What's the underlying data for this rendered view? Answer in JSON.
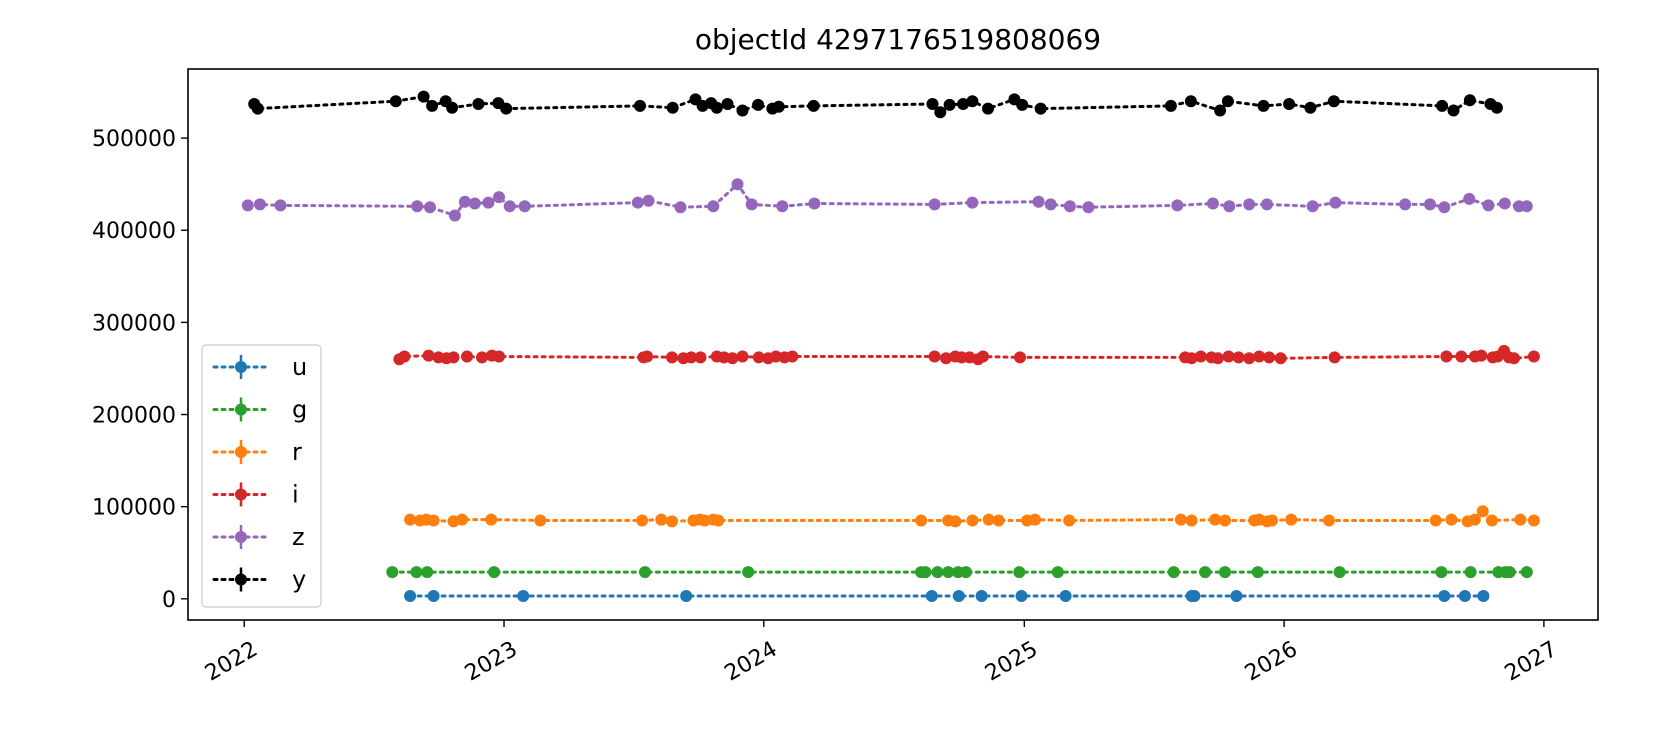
{
  "chart_data": {
    "type": "scatter",
    "title": "objectId 4297176519808069",
    "xlabel": "",
    "ylabel": "",
    "x_axis": {
      "kind": "date",
      "range": [
        "2021-10-14",
        "2027-03-18"
      ],
      "ticks": [
        "2022",
        "2023",
        "2024",
        "2025",
        "2026",
        "2027"
      ]
    },
    "y_axis": {
      "range": [
        -23000,
        575000
      ],
      "ticks": [
        0,
        100000,
        200000,
        300000,
        400000,
        500000
      ],
      "tick_labels": [
        "0",
        "100000",
        "200000",
        "300000",
        "400000",
        "500000"
      ]
    },
    "grid": false,
    "legend": {
      "placement": "lower-left",
      "entries": [
        "u",
        "g",
        "r",
        "i",
        "z",
        "y"
      ]
    },
    "series": [
      {
        "name": "u",
        "color": "#1f77b4",
        "x": [
          "2022-08-22",
          "2022-09-24",
          "2023-01-28",
          "2023-09-14",
          "2024-08-24",
          "2024-10-01",
          "2024-11-02",
          "2024-12-28",
          "2025-02-28",
          "2025-08-24",
          "2025-08-28",
          "2025-10-26",
          "2026-08-14",
          "2026-09-12",
          "2026-10-08"
        ],
        "y": [
          3000,
          3000,
          3000,
          3000,
          3000,
          3000,
          3000,
          3000,
          3000,
          3000,
          3000,
          3000,
          3000,
          3000,
          3000
        ]
      },
      {
        "name": "g",
        "color": "#2ca02c",
        "x": [
          "2022-07-28",
          "2022-08-31",
          "2022-09-15",
          "2022-12-18",
          "2023-07-18",
          "2023-12-10",
          "2024-08-09",
          "2024-08-15",
          "2024-09-01",
          "2024-09-16",
          "2024-09-30",
          "2024-10-11",
          "2024-12-25",
          "2025-02-17",
          "2025-07-30",
          "2025-09-12",
          "2025-10-10",
          "2025-11-25",
          "2026-03-20",
          "2026-08-10",
          "2026-09-20",
          "2026-10-29",
          "2026-11-08",
          "2026-11-14",
          "2026-12-08"
        ],
        "y": [
          29000,
          29000,
          29000,
          29000,
          29000,
          29000,
          29000,
          29000,
          29000,
          29000,
          29000,
          29000,
          29000,
          29000,
          29000,
          29000,
          29000,
          29000,
          29000,
          29000,
          29000,
          29000,
          29000,
          29000,
          29000
        ]
      },
      {
        "name": "r",
        "color": "#ff7f0e",
        "x": [
          "2022-08-22",
          "2022-09-05",
          "2022-09-14",
          "2022-09-24",
          "2022-10-22",
          "2022-11-03",
          "2022-12-14",
          "2023-02-21",
          "2023-07-14",
          "2023-08-10",
          "2023-08-25",
          "2023-09-24",
          "2023-10-03",
          "2023-10-10",
          "2023-10-22",
          "2023-10-29",
          "2024-08-09",
          "2024-09-16",
          "2024-09-26",
          "2024-10-20",
          "2024-11-12",
          "2024-11-26",
          "2025-01-05",
          "2025-01-16",
          "2025-03-05",
          "2025-08-09",
          "2025-08-24",
          "2025-09-26",
          "2025-10-10",
          "2025-11-20",
          "2025-11-27",
          "2025-12-08",
          "2025-12-15",
          "2026-01-11",
          "2026-03-05",
          "2026-08-02",
          "2026-08-24",
          "2026-09-16",
          "2026-09-26",
          "2026-10-07",
          "2026-10-20",
          "2026-11-29",
          "2026-12-18"
        ],
        "y": [
          86000,
          85000,
          86000,
          85000,
          84000,
          86000,
          86000,
          85000,
          85000,
          86000,
          84000,
          85000,
          86000,
          85000,
          86000,
          85000,
          85000,
          85000,
          84000,
          85000,
          86000,
          85000,
          85000,
          86000,
          85000,
          86000,
          85000,
          86000,
          85000,
          85000,
          86000,
          84000,
          85000,
          86000,
          85000,
          85000,
          86000,
          84000,
          86000,
          95000,
          85000,
          86000,
          85000
        ]
      },
      {
        "name": "i",
        "color": "#d62728",
        "x": [
          "2022-08-07",
          "2022-08-14",
          "2022-09-17",
          "2022-10-01",
          "2022-10-12",
          "2022-10-22",
          "2022-11-10",
          "2022-12-01",
          "2022-12-15",
          "2022-12-25",
          "2023-07-16",
          "2023-07-21",
          "2023-08-25",
          "2023-09-10",
          "2023-09-21",
          "2023-10-04",
          "2023-10-27",
          "2023-11-06",
          "2023-11-18",
          "2023-12-02",
          "2023-12-25",
          "2024-01-07",
          "2024-01-18",
          "2024-01-30",
          "2024-02-10",
          "2024-08-28",
          "2024-09-13",
          "2024-09-26",
          "2024-10-05",
          "2024-10-16",
          "2024-10-28",
          "2024-11-04",
          "2024-12-26",
          "2025-08-15",
          "2025-08-24",
          "2025-09-06",
          "2025-09-21",
          "2025-09-30",
          "2025-10-15",
          "2025-10-29",
          "2025-11-13",
          "2025-11-27",
          "2025-12-11",
          "2025-12-27",
          "2026-03-13",
          "2026-08-17",
          "2026-09-07",
          "2026-09-26",
          "2026-10-05",
          "2026-10-21",
          "2026-10-28",
          "2026-11-06",
          "2026-11-13",
          "2026-11-20",
          "2026-12-18"
        ],
        "y": [
          260000,
          263000,
          264000,
          262000,
          261000,
          262000,
          263000,
          262000,
          264000,
          263000,
          262000,
          263000,
          262000,
          261000,
          262000,
          262000,
          263000,
          262000,
          261000,
          263000,
          262000,
          261000,
          263000,
          262000,
          263000,
          263000,
          261000,
          263000,
          262000,
          262000,
          260000,
          263000,
          262000,
          262000,
          261000,
          263000,
          262000,
          261000,
          263000,
          262000,
          261000,
          263000,
          262000,
          261000,
          262000,
          263000,
          263000,
          263000,
          264000,
          262000,
          263000,
          269000,
          262000,
          261000,
          263000
        ]
      },
      {
        "name": "z",
        "color": "#9467bd",
        "x": [
          "2022-01-06",
          "2022-01-23",
          "2022-02-21",
          "2022-09-01",
          "2022-09-19",
          "2022-10-24",
          "2022-11-07",
          "2022-11-21",
          "2022-12-10",
          "2022-12-25",
          "2023-01-09",
          "2023-01-30",
          "2023-07-08",
          "2023-07-23",
          "2023-09-06",
          "2023-10-22",
          "2023-11-25",
          "2023-12-15",
          "2024-01-27",
          "2024-03-12",
          "2024-08-28",
          "2024-10-20",
          "2025-01-21",
          "2025-02-07",
          "2025-03-06",
          "2025-04-01",
          "2025-08-04",
          "2025-09-23",
          "2025-10-16",
          "2025-11-13",
          "2025-12-08",
          "2026-02-10",
          "2026-03-14",
          "2026-06-20",
          "2026-07-25",
          "2026-08-14",
          "2026-09-18",
          "2026-10-15",
          "2026-11-07",
          "2026-11-27",
          "2026-12-08"
        ],
        "y": [
          427000,
          428000,
          427000,
          426000,
          425000,
          416000,
          431000,
          429000,
          430000,
          436000,
          426000,
          426000,
          430000,
          432000,
          425000,
          426000,
          450000,
          428000,
          426000,
          429000,
          428000,
          430000,
          431000,
          428000,
          426000,
          425000,
          427000,
          429000,
          426000,
          428000,
          428000,
          426000,
          430000,
          428000,
          428000,
          425000,
          434000,
          427000,
          429000,
          426000,
          426000
        ]
      },
      {
        "name": "y",
        "color": "#000000",
        "x": [
          "2022-01-15",
          "2022-01-20",
          "2022-08-02",
          "2022-09-10",
          "2022-09-22",
          "2022-10-11",
          "2022-10-20",
          "2022-11-26",
          "2022-12-24",
          "2023-01-04",
          "2023-07-11",
          "2023-08-26",
          "2023-09-27",
          "2023-10-07",
          "2023-10-19",
          "2023-10-27",
          "2023-11-11",
          "2023-12-02",
          "2023-12-24",
          "2024-01-13",
          "2024-01-22",
          "2024-03-11",
          "2024-08-25",
          "2024-09-05",
          "2024-09-18",
          "2024-10-07",
          "2024-10-20",
          "2024-11-11",
          "2024-12-18",
          "2024-12-29",
          "2025-01-24",
          "2025-07-26",
          "2025-08-23",
          "2025-10-03",
          "2025-10-14",
          "2025-12-03",
          "2026-01-08",
          "2026-02-07",
          "2026-03-12",
          "2026-08-11",
          "2026-08-27",
          "2026-09-19",
          "2026-10-18",
          "2026-10-27"
        ],
        "y": [
          537000,
          532000,
          540000,
          545000,
          535000,
          540000,
          533000,
          537000,
          538000,
          532000,
          535000,
          533000,
          542000,
          535000,
          538000,
          533000,
          537000,
          530000,
          536000,
          532000,
          534000,
          535000,
          537000,
          528000,
          536000,
          537000,
          540000,
          532000,
          542000,
          536000,
          532000,
          535000,
          540000,
          530000,
          540000,
          535000,
          537000,
          533000,
          540000,
          535000,
          530000,
          541000,
          537000,
          533000
        ]
      }
    ]
  }
}
